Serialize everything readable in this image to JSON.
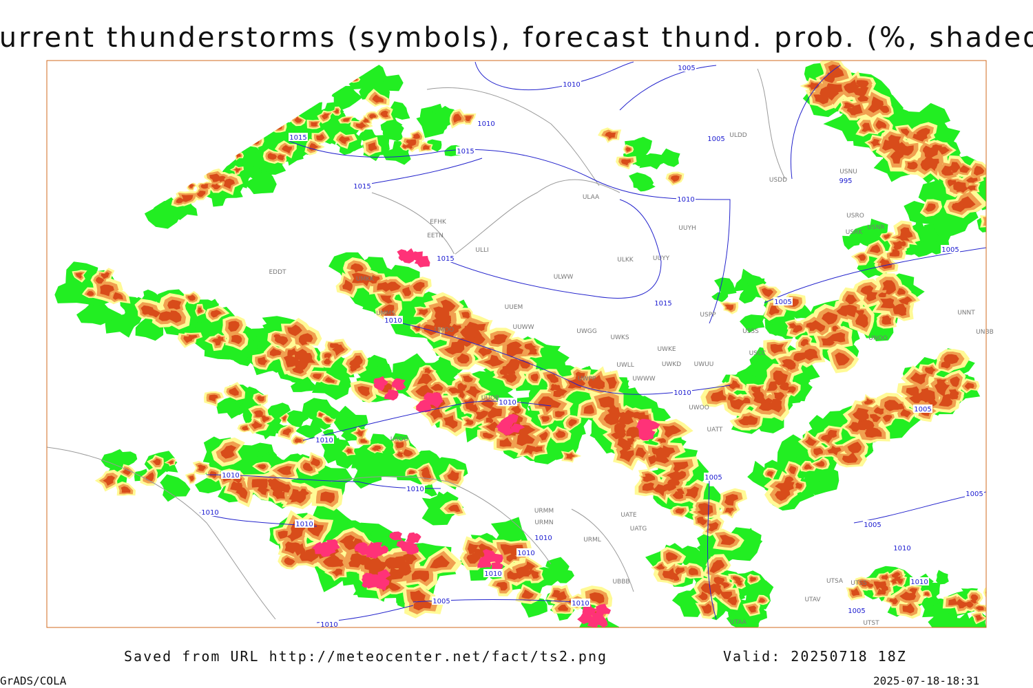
{
  "header": {
    "title": "Current thunderstorms (symbols), forecast thund. prob. (%, shaded)"
  },
  "map": {
    "isobar_labels": [
      "1005",
      "1010",
      "1015",
      "1010",
      "1015",
      "1015",
      "1005",
      "995",
      "1010",
      "1015",
      "1005",
      "1015",
      "1005",
      "1010",
      "1010",
      "1010",
      "1005",
      "1010",
      "1010",
      "1005",
      "1010",
      "1005",
      "1010",
      "1010",
      "1005",
      "1010",
      "1010",
      "1010",
      "1010",
      "1010",
      "1005",
      "1010",
      "1005",
      "1010"
    ],
    "stations": [
      "ULDD",
      "USDD",
      "USNU",
      "ULAA",
      "UUYH",
      "USRO",
      "USNR",
      "USRK",
      "EFHK",
      "EETN",
      "ULLI",
      "ULKK",
      "UUYY",
      "ULWW",
      "EDDT",
      "UUEM",
      "UMKK",
      "UMMS",
      "UUWW",
      "UMOO",
      "UWGG",
      "UWKS",
      "USPP",
      "USSS",
      "UNNT",
      "UNBB",
      "UNOO",
      "UWKE",
      "UWKD",
      "UWUU",
      "USCC",
      "UWLL",
      "UWWW",
      "UWPP",
      "UUOB",
      "UWOO",
      "UATT",
      "UKOO",
      "URMM",
      "URMN",
      "UATE",
      "UATG",
      "URML",
      "UBBB",
      "UTSA",
      "UTSS",
      "UTAV",
      "UTAA",
      "UTST"
    ]
  },
  "footer": {
    "source": "Saved from URL http://meteocenter.net/fact/ts2.png",
    "valid": "Valid: 20250718 18Z",
    "software": "GrADS/COLA",
    "timestamp": "2025-07-18-18:31"
  }
}
